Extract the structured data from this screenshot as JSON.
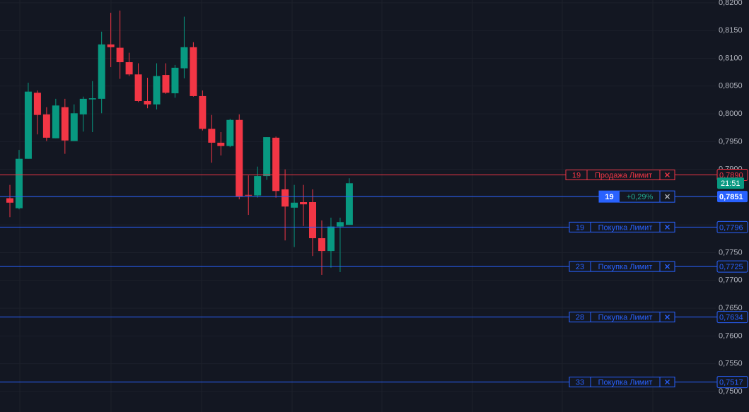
{
  "chart_data": {
    "type": "candlestick",
    "categories": [
      null,
      null,
      null,
      null,
      null,
      null,
      null,
      null,
      null,
      null,
      null,
      null,
      null,
      null,
      null,
      null,
      null,
      null,
      null,
      null,
      null,
      null,
      null,
      null,
      null,
      null,
      null,
      null,
      null,
      null,
      null,
      null,
      null,
      null,
      null,
      null,
      null,
      null
    ],
    "open": [
      0.7848,
      0.783,
      0.7919,
      0.8038,
      0.7999,
      0.7956,
      0.8012,
      0.7951,
      0.7999,
      0.8026,
      0.8027,
      0.8125,
      0.8119,
      0.8093,
      0.8071,
      0.8023,
      0.8017,
      0.807,
      0.8037,
      0.8082,
      0.812,
      0.8032,
      0.7973,
      0.7948,
      0.7942,
      0.7989,
      0.7854,
      0.7853,
      0.7888,
      0.7957,
      0.7864,
      0.7831,
      0.7841,
      0.7841,
      0.7776,
      0.7753,
      0.7797,
      0.78
    ],
    "high": [
      0.7872,
      0.7935,
      0.8056,
      0.8042,
      0.8012,
      0.8027,
      0.8027,
      0.8017,
      0.8031,
      0.8059,
      0.8148,
      0.8182,
      0.8186,
      0.811,
      0.8091,
      0.8065,
      0.8091,
      0.8091,
      0.8088,
      0.8175,
      0.8129,
      0.8042,
      0.7998,
      0.7967,
      0.7991,
      0.7999,
      0.7889,
      0.7905,
      0.7958,
      0.7959,
      0.79,
      0.7872,
      0.7872,
      0.7864,
      0.7808,
      0.7813,
      0.7813,
      0.7884
    ],
    "low": [
      0.7814,
      0.7828,
      0.7919,
      0.7963,
      0.7951,
      0.7956,
      0.7928,
      0.7951,
      0.7968,
      0.7967,
      0.8001,
      0.8084,
      0.8063,
      0.8068,
      0.8021,
      0.801,
      0.8008,
      0.8036,
      0.8029,
      0.8064,
      0.8031,
      0.797,
      0.7912,
      0.7925,
      0.794,
      0.7846,
      0.7818,
      0.7849,
      0.7881,
      0.7849,
      0.7772,
      0.776,
      0.7798,
      0.7744,
      0.771,
      0.7723,
      0.7715,
      0.78
    ],
    "close": [
      0.784,
      0.7919,
      0.804,
      0.7998,
      0.7957,
      0.8015,
      0.7952,
      0.8001,
      0.8027,
      0.8028,
      0.8125,
      0.812,
      0.8093,
      0.8071,
      0.8023,
      0.8017,
      0.8068,
      0.8038,
      0.8083,
      0.812,
      0.8032,
      0.7973,
      0.7948,
      0.7942,
      0.7989,
      0.7851,
      0.7853,
      0.7888,
      0.7958,
      0.7861,
      0.7833,
      0.784,
      0.7837,
      0.7776,
      0.7753,
      0.7797,
      0.7805,
      0.7875
    ],
    "up_color": "#089981",
    "down_color": "#f23645",
    "ylim": [
      0.7463,
      0.8205
    ],
    "yticks": [
      {
        "value": 0.75,
        "label": "0,7500"
      },
      {
        "value": 0.755,
        "label": "0,7550"
      },
      {
        "value": 0.76,
        "label": "0,7600"
      },
      {
        "value": 0.765,
        "label": "0,7650"
      },
      {
        "value": 0.77,
        "label": "0,7700"
      },
      {
        "value": 0.775,
        "label": "0,7750"
      },
      {
        "value": 0.78,
        "label": "0,7800"
      },
      {
        "value": 0.785,
        "label": "0,7850"
      },
      {
        "value": 0.79,
        "label": "0,7900"
      },
      {
        "value": 0.795,
        "label": "0,7950"
      },
      {
        "value": 0.8,
        "label": "0,8000"
      },
      {
        "value": 0.805,
        "label": "0,8050"
      },
      {
        "value": 0.81,
        "label": "0,8100"
      },
      {
        "value": 0.815,
        "label": "0,8150"
      },
      {
        "value": 0.82,
        "label": "0,8200"
      }
    ],
    "grid": true,
    "countdown": "21:51",
    "position": {
      "qty": 19,
      "pnl": "+0,29%",
      "price": {
        "value": 0.7851,
        "label": "0,7851"
      },
      "color": "#2962ff"
    },
    "orders": [
      {
        "qty": 19,
        "label": "Продажа Лимит",
        "price": {
          "value": 0.789,
          "label": "0,7890"
        },
        "color": "#f23645"
      },
      {
        "qty": 19,
        "label": "Покупка Лимит",
        "price": {
          "value": 0.7796,
          "label": "0,7796"
        },
        "color": "#2962ff"
      },
      {
        "qty": 23,
        "label": "Покупка Лимит",
        "price": {
          "value": 0.7725,
          "label": "0,7725"
        },
        "color": "#2962ff"
      },
      {
        "qty": 28,
        "label": "Покупка Лимит",
        "price": {
          "value": 0.7634,
          "label": "0,7634"
        },
        "color": "#2962ff"
      },
      {
        "qty": 33,
        "label": "Покупка Лимит",
        "price": {
          "value": 0.7517,
          "label": "0,7517"
        },
        "color": "#2962ff"
      }
    ]
  }
}
